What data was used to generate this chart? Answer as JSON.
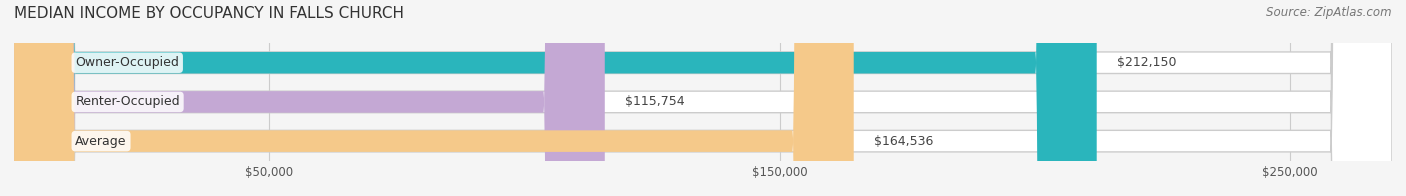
{
  "title": "MEDIAN INCOME BY OCCUPANCY IN FALLS CHURCH",
  "source_text": "Source: ZipAtlas.com",
  "categories": [
    "Owner-Occupied",
    "Renter-Occupied",
    "Average"
  ],
  "values": [
    212150,
    115754,
    164536
  ],
  "bar_colors": [
    "#2ab5bc",
    "#c4a8d4",
    "#f5c98a"
  ],
  "bar_bg_color": "#e8e8e8",
  "label_texts": [
    "$212,150",
    "$115,754",
    "$164,536"
  ],
  "x_ticks": [
    0,
    50000,
    150000,
    250000
  ],
  "x_tick_labels": [
    "",
    "$50,000",
    "$150,000",
    "$250,000"
  ],
  "x_max": 270000,
  "background_color": "#f5f5f5",
  "bar_bg_outer": "#d8d8d8",
  "title_fontsize": 11,
  "source_fontsize": 8.5,
  "label_fontsize": 9,
  "category_fontsize": 9
}
